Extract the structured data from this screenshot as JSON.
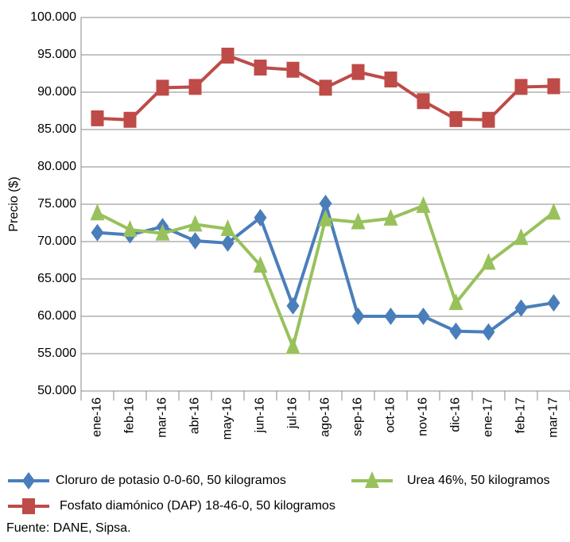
{
  "chart_data": {
    "type": "line",
    "y_label": "Precio ($)",
    "source": "Fuente: DANE, Sipsa.",
    "categories": [
      "ene-16",
      "feb-16",
      "mar-16",
      "abr-16",
      "may-16",
      "jun-16",
      "jul-16",
      "ago-16",
      "sep-16",
      "oct-16",
      "nov-16",
      "dic-16",
      "ene-17",
      "feb-17",
      "mar-17"
    ],
    "ylim": [
      50000,
      100000
    ],
    "yticks": [
      {
        "value": 50000,
        "label": "50.000"
      },
      {
        "value": 55000,
        "label": "55.000"
      },
      {
        "value": 60000,
        "label": "60.000"
      },
      {
        "value": 65000,
        "label": "65.000"
      },
      {
        "value": 70000,
        "label": "70.000"
      },
      {
        "value": 75000,
        "label": "75.000"
      },
      {
        "value": 80000,
        "label": "80.000"
      },
      {
        "value": 85000,
        "label": "85.000"
      },
      {
        "value": 90000,
        "label": "90.000"
      },
      {
        "value": 95000,
        "label": "95.000"
      },
      {
        "value": 100000,
        "label": "100.000"
      }
    ],
    "grid": true,
    "series": [
      {
        "name": "Cloruro de potasio 0-0-60, 50 kilogramos",
        "color": "#4a7ebb",
        "marker": "diamond",
        "values": [
          71200,
          70900,
          72000,
          70100,
          69800,
          73200,
          61400,
          75100,
          60000,
          60000,
          60000,
          58000,
          57900,
          61100,
          61800
        ]
      },
      {
        "name": "Urea 46%, 50 kilogramos",
        "color": "#98c15c",
        "marker": "triangle",
        "values": [
          73800,
          71600,
          71100,
          72300,
          71700,
          66800,
          55900,
          73000,
          72600,
          73100,
          74800,
          61800,
          67200,
          70500,
          73900
        ]
      },
      {
        "name": "Fosfato diamónico (DAP) 18-46-0, 50 kilogramos",
        "color": "#be4b48",
        "marker": "square",
        "values": [
          86500,
          86300,
          90600,
          90700,
          94900,
          93300,
          93000,
          90600,
          92700,
          91700,
          88800,
          86400,
          86300,
          90700,
          90800
        ]
      }
    ]
  }
}
